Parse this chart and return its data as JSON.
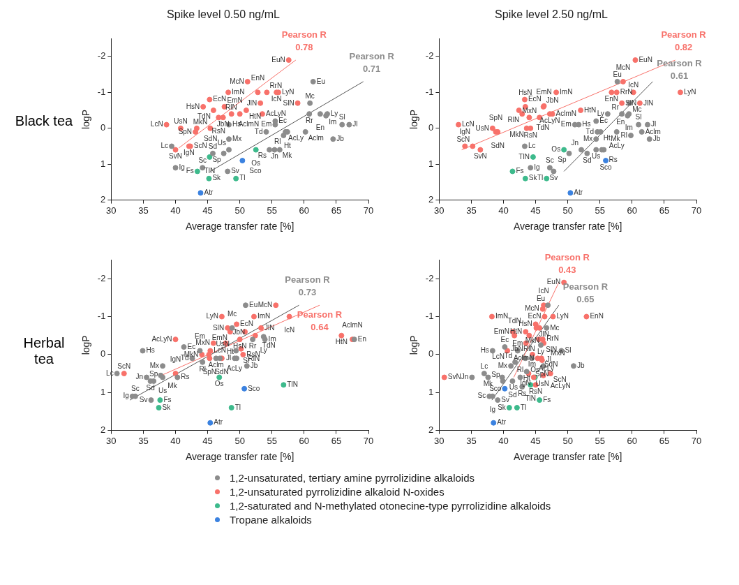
{
  "chart_data": [
    {
      "type": "scatter",
      "title": "Spike level 0.50 ng/mL",
      "subtitle": "Black tea",
      "xlabel": "Average transfer rate [%]",
      "ylabel": "logP",
      "xlim": [
        30,
        70
      ],
      "ylim": [
        2,
        -2.5
      ],
      "xticks": [
        30,
        35,
        40,
        45,
        50,
        55,
        60,
        65,
        70
      ],
      "yticks": [
        2,
        1,
        0,
        -1,
        -2
      ],
      "marker": "circle",
      "legend": "bottom",
      "series": [
        {
          "name": "1,2-unsaturated, tertiary amine pyrrolizidine alkaloids",
          "color": "#8c8c8c",
          "x": [
            61.4,
            60.9,
            60.8,
            62.5,
            63.6,
            63.4,
            65.9,
            67.0,
            64.5,
            55.5,
            55.5,
            54.1,
            57.1,
            57.4,
            56.8,
            60.2,
            48.3,
            48.3,
            48.3,
            47.5,
            45.8,
            39.4,
            40.0,
            44.2,
            48.1,
            55.4,
            54.6,
            56.2
          ],
          "values": [
            -1.3,
            -0.7,
            -0.4,
            -0.4,
            -0.4,
            -0.35,
            -0.1,
            -0.1,
            0.3,
            -0.2,
            -0.1,
            0.1,
            0.1,
            0.1,
            0.2,
            0.1,
            -0.1,
            0.3,
            0.6,
            0.7,
            0.7,
            0.5,
            1.1,
            1.1,
            1.2,
            0.6,
            0.6,
            0.6
          ],
          "value_labels": [
            "Eu",
            "Mc",
            "Rr",
            "En",
            "Ly",
            "Im",
            "Sl",
            "Jl",
            "Jb",
            "Ec",
            "Em",
            "Td",
            "AcLy",
            "Ht",
            "Rl",
            "Aclm",
            "Hs",
            "Mx",
            "Us",
            "Sp",
            "Sd",
            "Lc",
            "Ig",
            "Sc",
            "Sv",
            "Jn",
            "Rs",
            "Mk"
          ]
        },
        {
          "name": "1,2-unsaturated pyrrolizidine alkaloid N-oxides",
          "color": "#f8716a",
          "x": [
            57.6,
            51.2,
            48.2,
            52.8,
            54.2,
            55.7,
            56.0,
            45.3,
            53.2,
            44.3,
            47.6,
            51.0,
            45.9,
            48.7,
            50.0,
            53.5,
            59.0,
            46.7,
            47.4,
            38.6,
            40.8,
            43.3,
            43.1,
            45.4,
            42.3,
            40.0,
            42.1
          ],
          "values": [
            -1.9,
            -1.3,
            -1.0,
            -1.0,
            -1.0,
            -1.0,
            -1.0,
            -0.8,
            -0.7,
            -0.6,
            -0.6,
            -0.5,
            -0.5,
            -0.4,
            -0.4,
            -0.4,
            -0.7,
            -0.3,
            -0.3,
            -0.1,
            0.0,
            0.0,
            0.1,
            0.0,
            0.5,
            0.6,
            0.5
          ],
          "value_labels": [
            "EuN",
            "McN",
            "ImN",
            "EnN",
            "RrN",
            "IcN",
            "LyN",
            "EcN",
            "JlN",
            "HsN",
            "EmN",
            "HtN",
            "TdN",
            "AclmN",
            "RlN",
            "AcLyN",
            "SlN",
            "RsN",
            "JbN",
            "LcN",
            "UsN",
            "SdN",
            "SpN",
            "MkN",
            "ScN",
            "SvN",
            "IgN"
          ]
        },
        {
          "name": "1,2-saturated and N-methylated otonecine-type pyrrolizidine alkaloids",
          "color": "#3dba8c",
          "x": [
            52.5,
            45.3,
            43.4,
            45.2,
            49.4
          ],
          "values": [
            0.6,
            0.8,
            1.2,
            1.4,
            1.4
          ],
          "value_labels": [
            "Os",
            "TlN",
            "Fs",
            "Sk",
            "Tl"
          ]
        },
        {
          "name": "Tropane alkaloids",
          "color": "#3b82e0",
          "x": [
            50.4,
            43.9
          ],
          "values": [
            0.9,
            1.8
          ],
          "value_labels": [
            "Sco",
            "Atr"
          ]
        },
        {
          "type": "line",
          "marker": "none",
          "color": "#f8716a",
          "x": [
            40.5,
            58.7
          ],
          "values": [
            0.55,
            -1.9
          ]
        },
        {
          "type": "line",
          "marker": "none",
          "color": "#555555",
          "x": [
            45.4,
            69.2
          ],
          "values": [
            1.2,
            -1.3
          ]
        }
      ],
      "annotations": [
        "Pearson R\n0.78",
        "Pearson R\n0.71"
      ]
    },
    {
      "type": "scatter",
      "title": "Spike level 2.50 ng/mL",
      "xlabel": "Average transfer rate [%]",
      "ylabel": "logP",
      "xlim": [
        30,
        70
      ],
      "ylim": [
        2,
        -2.5
      ],
      "xticks": [
        30,
        35,
        40,
        45,
        50,
        55,
        60,
        65,
        70
      ],
      "yticks": [
        2,
        1,
        0,
        -1,
        -2
      ],
      "marker": "circle",
      "series": [
        {
          "color": "#8c8c8c",
          "x": [
            57.7,
            59.6,
            58.4,
            59.5,
            59.3,
            56.2,
            54.4,
            51.7,
            51.1,
            54.6,
            55.1,
            57.6,
            59.8,
            61.0,
            62.4,
            61.5,
            62.7,
            54.4,
            54.4,
            55.3,
            55.6,
            52.1,
            53.0,
            50.2,
            43.3,
            44.2,
            47.2,
            47.8
          ],
          "values": [
            -1.3,
            -0.7,
            -0.4,
            -0.4,
            -0.35,
            -0.4,
            -0.2,
            -0.1,
            -0.1,
            0.1,
            0.1,
            0.1,
            0.2,
            -0.1,
            -0.1,
            0.1,
            0.3,
            0.3,
            0.6,
            0.6,
            0.6,
            0.6,
            0.7,
            0.7,
            0.5,
            1.1,
            1.1,
            1.2
          ],
          "value_labels": [
            "Eu",
            "Mc",
            "Rr",
            "Im",
            "En",
            "Ly",
            "Ec",
            "Hs",
            "Em",
            "Td",
            "Ht",
            "AcLy",
            "Rl",
            "Sl",
            "Jl",
            "Aclm",
            "Jb",
            "Mx",
            "Us",
            "Rs",
            "Mk",
            "Jn",
            "Sd",
            "Sp",
            "Lc",
            "Ig",
            "Sc",
            "Sv"
          ]
        },
        {
          "color": "#f8716a",
          "x": [
            60.5,
            58.6,
            48.2,
            56.8,
            57.6,
            60.2,
            67.5,
            58.4,
            61.2,
            43.3,
            43.4,
            46.2,
            46.3,
            42.4,
            52.0,
            42.9,
            44.0,
            47.2,
            47.6,
            45.6,
            44.2,
            43.6,
            33.0,
            38.3,
            38.8,
            39.1,
            35.2,
            34.0,
            36.4
          ],
          "values": [
            -1.9,
            -1.3,
            -1.0,
            -1.0,
            -1.0,
            -1.0,
            -1.0,
            -0.7,
            -0.7,
            -0.8,
            -0.6,
            -0.6,
            -0.62,
            -0.5,
            -0.5,
            -0.4,
            -0.3,
            -0.4,
            -0.4,
            -0.3,
            0.0,
            0.0,
            -0.1,
            0.0,
            0.1,
            0.1,
            0.5,
            0.5,
            0.6
          ],
          "value_labels": [
            "EuN",
            "McN",
            "ImN",
            "EnN",
            "RrN",
            "IcN",
            "LyN",
            "SlN",
            "JlN",
            "EcN",
            "HsN",
            "JbN",
            "EmN",
            null,
            "HtN",
            "RlN",
            "TdN",
            "AcLyN",
            "AclmN",
            "MxN",
            "RsN",
            "MkN",
            "LcN",
            "UsN",
            "SpN",
            "SdN",
            "ScN",
            "IgN",
            "SvN"
          ]
        },
        {
          "color": "#3dba8c",
          "x": [
            49.4,
            44.6,
            41.4,
            43.4,
            46.7
          ],
          "values": [
            0.6,
            0.8,
            1.2,
            1.4,
            1.4
          ],
          "value_labels": [
            "Os",
            "TlN",
            "Fs",
            "Sk",
            "Tl"
          ]
        },
        {
          "color": "#3b82e0",
          "x": [
            55.9,
            50.4
          ],
          "values": [
            0.9,
            1.8
          ],
          "value_labels": [
            "Sco",
            "Atr"
          ]
        },
        {
          "type": "line",
          "marker": "none",
          "color": "#f8716a",
          "x": [
            33.5,
            66.7
          ],
          "values": [
            0.6,
            -1.9
          ]
        },
        {
          "type": "line",
          "marker": "none",
          "color": "#555555",
          "x": [
            49.4,
            63.2
          ],
          "values": [
            1.2,
            -1.3
          ]
        }
      ],
      "annotations": [
        "Pearson R\n0.82",
        "Pearson R\n0.61"
      ]
    },
    {
      "type": "scatter",
      "subtitle": "Herbal tea",
      "xlabel": "Average transfer rate [%]",
      "ylabel": "logP",
      "xlim": [
        30,
        70
      ],
      "ylim": [
        2,
        -2.5
      ],
      "xticks": [
        30,
        35,
        40,
        45,
        50,
        55,
        60,
        65,
        70
      ],
      "yticks": [
        2,
        1,
        0,
        -1,
        -2
      ],
      "marker": "circle",
      "series": [
        {
          "color": "#8c8c8c",
          "x": [
            50.9,
            48.8,
            53.7,
            53.9,
            52.0,
            67.8,
            34.9,
            41.3,
            43.8,
            42.6,
            44.2,
            46.3,
            46.9,
            49.2,
            49.5,
            49.4,
            51.1,
            38.0,
            35.5,
            37.7,
            38.0,
            36.6,
            36.1,
            30.9,
            33.75,
            33.3,
            36.2,
            40.3
          ],
          "values": [
            -1.3,
            -0.7,
            -0.47,
            -0.4,
            -0.4,
            -0.4,
            -0.1,
            -0.2,
            -0.1,
            0.1,
            0.2,
            0.1,
            0.1,
            0.1,
            0.1,
            -0.1,
            0.3,
            0.3,
            0.6,
            0.55,
            0.6,
            0.7,
            0.7,
            0.5,
            1.1,
            1.1,
            1.2,
            0.6
          ],
          "value_labels": [
            "Eu",
            "Mc",
            "Ly",
            "Im",
            "Rr",
            "En",
            "Hs",
            "Ec",
            "Em",
            "Td",
            "Rl",
            "Aclm",
            "AcLy",
            "Jl",
            "Ht",
            "Sl",
            "Jb",
            "Mx",
            "Jn",
            "Mk",
            "Us",
            "Sp",
            "Sd",
            "Lc",
            "Sc",
            "Ig",
            "Sv",
            "Rs"
          ]
        },
        {
          "color": "#f8716a",
          "x": [
            55.6,
            52.2,
            57.7,
            47.2,
            48.1,
            49.5,
            48.5,
            50.8,
            53.3,
            52.4,
            65.8,
            67.5,
            40.0,
            45.9,
            47.8,
            50.0,
            50.2,
            45.4,
            44.1,
            45.2,
            45.3,
            47.2,
            50.5,
            40.0,
            32.0
          ],
          "values": [
            -1.3,
            -1.0,
            -1.0,
            -1.0,
            -0.7,
            -0.8,
            -0.6,
            -0.6,
            -0.7,
            -0.5,
            -0.5,
            -0.4,
            -0.4,
            -0.3,
            -0.3,
            -0.4,
            -0.15,
            -0.1,
            0.0,
            0.0,
            0.1,
            0.1,
            0.0,
            0.5,
            0.5
          ],
          "value_labels": [
            "McN",
            "ImN",
            "IcN",
            "LyN",
            "SlN",
            "EcN",
            "EmN",
            null,
            "JlN",
            "TdN",
            "HtN",
            "AclmN",
            "AcLyN",
            "MxN",
            "JbN",
            "HsN",
            "RlN",
            "LcN",
            "MkN",
            "UsN",
            "SpN",
            "SdN",
            "RsN",
            "IgN",
            "ScN"
          ]
        },
        {
          "color": "#3dba8c",
          "x": [
            46.8,
            56.8,
            37.6,
            37.4,
            48.7
          ],
          "values": [
            0.6,
            0.8,
            1.2,
            1.4,
            1.4
          ],
          "value_labels": [
            "Os",
            "TlN",
            "Fs",
            "Sk",
            "Tl"
          ]
        },
        {
          "color": "#3b82e0",
          "x": [
            50.7,
            45.4
          ],
          "values": [
            0.9,
            1.8
          ],
          "value_labels": [
            "Sco",
            "Atr"
          ]
        },
        {
          "type": "line",
          "marker": "none",
          "color": "#555555",
          "x": [
            32.9,
            59.2
          ],
          "values": [
            1.2,
            -1.3
          ]
        },
        {
          "type": "line",
          "marker": "none",
          "color": "#f8716a",
          "x": [
            37.4,
            62.4
          ],
          "values": [
            0.58,
            -1.3
          ]
        }
      ],
      "annotations": [
        "Pearson R\n0.73",
        "Pearson R\n0.64"
      ]
    },
    {
      "type": "scatter",
      "xlabel": "Average transfer rate [%]",
      "ylabel": "logP",
      "xlim": [
        30,
        70
      ],
      "ylim": [
        2,
        -2.5
      ],
      "xticks": [
        30,
        35,
        40,
        45,
        50,
        55,
        60,
        65,
        70
      ],
      "yticks": [
        2,
        1,
        0,
        -1,
        -2
      ],
      "marker": "circle",
      "series": [
        {
          "color": "#8c8c8c",
          "x": [
            46.9,
            46.7,
            45.8,
            40.2,
            42.2,
            38.3,
            43.4,
            44.4,
            49.0,
            46.2,
            50.9,
            41.15,
            41.8,
            43.6,
            37.0,
            35.1,
            37.6,
            39.8,
            39.9,
            41.4,
            42.6,
            42.9,
            37.8,
            38.3,
            39.1
          ],
          "values": [
            -1.3,
            -0.7,
            -0.25,
            -0.2,
            -0.1,
            -0.1,
            0.1,
            0.1,
            -0.1,
            0.3,
            0.3,
            0.3,
            0.2,
            0.45,
            0.5,
            0.6,
            0.6,
            0.6,
            0.7,
            0.7,
            0.6,
            0.85,
            1.1,
            1.1,
            1.2
          ],
          "value_labels": [
            "Eu",
            "Mc",
            "Ly",
            "Ec",
            "Em",
            "Hs",
            "Im",
            "AcLy",
            "Sl",
            "Jl",
            "Jb",
            "Mx",
            "Td",
            "Ht",
            "Lc",
            "Jn",
            "Mk",
            "Us",
            "Sp",
            "Sd",
            "Rl",
            "Rs",
            "Sc",
            "Ig",
            "Sv"
          ]
        },
        {
          "color": "#f8716a",
          "x": [
            49.4,
            46.25,
            46.1,
            46.4,
            47.7,
            52.9,
            38.2,
            45.0,
            45.1,
            45.6,
            41.45,
            41.7,
            43.45,
            44.0,
            45.5,
            46.1,
            46.25,
            43.5,
            40.6,
            44.5,
            45.3,
            45.9,
            46.0,
            43.9,
            47.3,
            46.2,
            45.0,
            30.8,
            44.7
          ],
          "values": [
            -1.9,
            -1.3,
            -1.2,
            -1.0,
            -1.0,
            -1.0,
            -1.0,
            -0.8,
            -0.7,
            -0.7,
            -0.6,
            -0.5,
            -0.6,
            -0.5,
            -0.4,
            -0.4,
            -0.3,
            -0.3,
            -0.1,
            0.0,
            0.1,
            0.1,
            0.15,
            0.5,
            0.5,
            0.55,
            0.8,
            0.6,
            0.6
          ],
          "value_labels": [
            "EuN",
            "IcN",
            "McN",
            "EcN",
            "LyN",
            "EnN",
            "ImN",
            "HsN",
            "JlN",
            "RrN",
            "EmN",
            "TdN",
            "HtN",
            "RlN",
            "SlN",
            null,
            "MxN",
            "JbN",
            "LcN",
            "MkN",
            "AclmN",
            "SdN",
            "SpN",
            "UsN",
            "ScN",
            "AcLyN",
            "RsN",
            "SvN",
            "IgN"
          ]
        },
        {
          "color": "#3dba8c",
          "x": [
            44.9,
            44.2,
            45.6,
            40.9,
            42.1
          ],
          "values": [
            0.6,
            0.8,
            1.2,
            1.4,
            1.4
          ],
          "value_labels": [
            "Os",
            "TlN",
            "Fs",
            "Sk",
            "Tl"
          ]
        },
        {
          "color": "#3b82e0",
          "x": [
            40.2,
            38.45
          ],
          "values": [
            0.9,
            1.8
          ],
          "value_labels": [
            "Sco",
            "Atr"
          ]
        },
        {
          "type": "line",
          "marker": "none",
          "color": "#f8716a",
          "x": [
            41.6,
            48.6
          ],
          "values": [
            0.6,
            -1.9
          ]
        },
        {
          "type": "line",
          "marker": "none",
          "color": "#555555",
          "x": [
            38.2,
            48.6
          ],
          "values": [
            1.2,
            -1.3
          ]
        }
      ],
      "annotations": [
        "Pearson R\n0.43",
        "Pearson R\n0.65"
      ]
    }
  ]
}
